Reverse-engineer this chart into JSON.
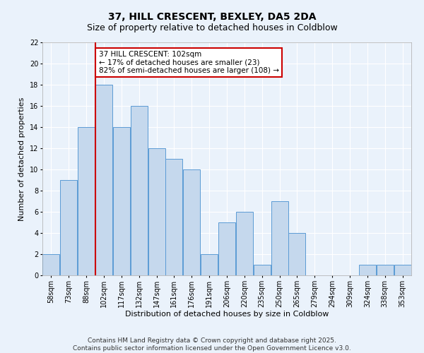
{
  "title": "37, HILL CRESCENT, BEXLEY, DA5 2DA",
  "subtitle": "Size of property relative to detached houses in Coldblow",
  "xlabel": "Distribution of detached houses by size in Coldblow",
  "ylabel": "Number of detached properties",
  "bins": [
    "58sqm",
    "73sqm",
    "88sqm",
    "102sqm",
    "117sqm",
    "132sqm",
    "147sqm",
    "161sqm",
    "176sqm",
    "191sqm",
    "206sqm",
    "220sqm",
    "235sqm",
    "250sqm",
    "265sqm",
    "279sqm",
    "294sqm",
    "309sqm",
    "324sqm",
    "338sqm",
    "353sqm"
  ],
  "values": [
    2,
    9,
    14,
    18,
    14,
    16,
    12,
    11,
    10,
    2,
    5,
    6,
    1,
    7,
    4,
    0,
    0,
    0,
    1,
    1,
    1
  ],
  "bar_color": "#c5d8ed",
  "bar_edge_color": "#5b9bd5",
  "highlight_index": 3,
  "highlight_line_color": "#cc0000",
  "ylim": [
    0,
    22
  ],
  "yticks": [
    0,
    2,
    4,
    6,
    8,
    10,
    12,
    14,
    16,
    18,
    20,
    22
  ],
  "annotation_text": "37 HILL CRESCENT: 102sqm\n← 17% of detached houses are smaller (23)\n82% of semi-detached houses are larger (108) →",
  "annotation_box_color": "#ffffff",
  "annotation_box_edge_color": "#cc0000",
  "footer_text": "Contains HM Land Registry data © Crown copyright and database right 2025.\nContains public sector information licensed under the Open Government Licence v3.0.",
  "background_color": "#eaf2fb",
  "grid_color": "#ffffff",
  "title_fontsize": 10,
  "subtitle_fontsize": 9,
  "axis_label_fontsize": 8,
  "tick_fontsize": 7,
  "annotation_fontsize": 7.5,
  "footer_fontsize": 6.5
}
